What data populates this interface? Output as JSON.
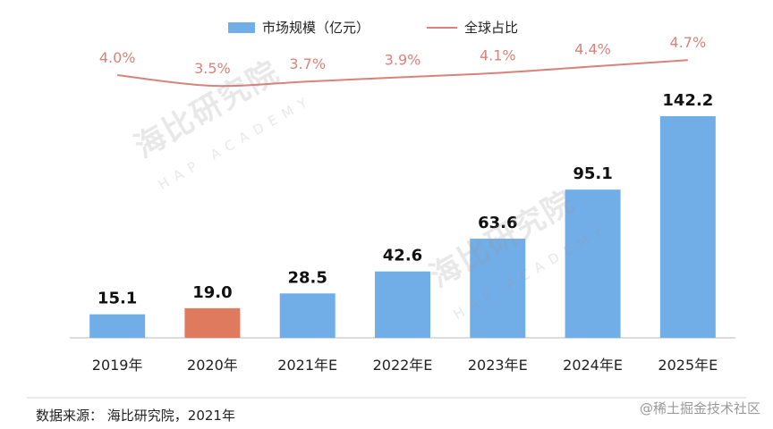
{
  "legend": {
    "bar_label": "市场规模（亿元）",
    "line_label": "全球占比"
  },
  "source": "数据来源： 海比研究院，2021年",
  "watermark_site": "@稀土掘金技术社区",
  "brand_watermark": {
    "name": "海比研究院",
    "sub": "HAP ACADEMY"
  },
  "colors": {
    "bar": "#71aee8",
    "bar_highlight": "#e07a5f",
    "line": "#d9827a",
    "line_label": "#d9827a"
  },
  "chart_data": {
    "type": "bar",
    "categories": [
      "2019年",
      "2020年",
      "2021年E",
      "2022年E",
      "2023年E",
      "2024年E",
      "2025年E"
    ],
    "series": [
      {
        "name": "市场规模（亿元）",
        "type": "bar",
        "values": [
          15.1,
          19.0,
          28.5,
          42.6,
          63.6,
          95.1,
          142.2
        ],
        "labels": [
          "15.1",
          "19.0",
          "28.5",
          "42.6",
          "63.6",
          "95.1",
          "142.2"
        ]
      },
      {
        "name": "全球占比",
        "type": "line",
        "values": [
          4.0,
          3.5,
          3.7,
          3.9,
          4.1,
          4.4,
          4.7
        ],
        "labels": [
          "4.0%",
          "3.5%",
          "3.7%",
          "3.9%",
          "4.1%",
          "4.4%",
          "4.7%"
        ]
      }
    ],
    "highlight_index": 1,
    "title": "",
    "legend_position": "top"
  }
}
